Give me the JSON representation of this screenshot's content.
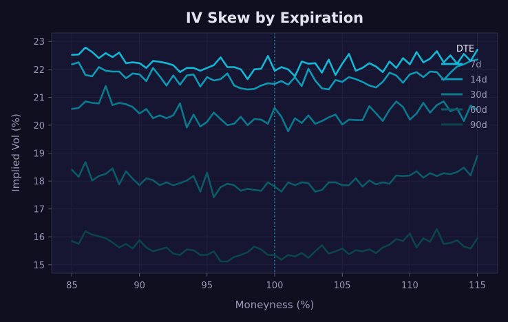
{
  "chart_data": {
    "type": "line",
    "title": "IV Skew by Expiration",
    "xlabel": "Moneyness (%)",
    "ylabel": "Implied Vol (%)",
    "xlim": [
      83.5,
      116.5
    ],
    "ylim": [
      14.7,
      23.3
    ],
    "xticks": [
      85,
      90,
      95,
      100,
      105,
      110,
      115
    ],
    "yticks": [
      15,
      16,
      17,
      18,
      19,
      20,
      21,
      22,
      23
    ],
    "grid": true,
    "reference_line_x": 100,
    "legend": {
      "title": "DTE",
      "placement": "top-right"
    },
    "x": [
      85,
      85.5,
      86,
      86.5,
      87,
      87.5,
      88,
      88.5,
      89,
      89.5,
      90,
      90.5,
      91,
      91.5,
      92,
      92.5,
      93,
      93.5,
      94,
      94.5,
      95,
      95.5,
      96,
      96.5,
      97,
      97.5,
      98,
      98.5,
      99,
      99.5,
      100,
      100.5,
      101,
      101.5,
      102,
      102.5,
      103,
      103.5,
      104,
      104.5,
      105,
      105.5,
      106,
      106.5,
      107,
      107.5,
      108,
      108.5,
      109,
      109.5,
      110,
      110.5,
      111,
      111.5,
      112,
      112.5,
      113,
      113.5,
      114,
      114.5,
      115
    ],
    "series": [
      {
        "name": "7d",
        "color": "#14b8d6",
        "values": [
          22.52,
          22.53,
          22.78,
          22.62,
          22.4,
          22.58,
          22.44,
          22.6,
          22.22,
          22.25,
          22.22,
          22.05,
          22.3,
          22.27,
          22.22,
          22.15,
          21.9,
          22.05,
          22.05,
          21.95,
          22.05,
          22.15,
          22.43,
          22.08,
          22.08,
          22.0,
          21.65,
          22.0,
          22.02,
          22.48,
          21.95,
          22.08,
          22.0,
          21.75,
          22.28,
          22.2,
          22.22,
          21.88,
          22.35,
          21.8,
          22.2,
          22.55,
          21.95,
          22.05,
          22.22,
          22.1,
          21.9,
          22.28,
          22.05,
          22.4,
          22.18,
          22.62,
          22.25,
          22.38,
          22.65,
          22.25,
          22.5,
          22.2,
          22.55,
          22.3,
          22.7
        ]
      },
      {
        "name": "14d",
        "color": "#0f9ab6",
        "values": [
          22.18,
          22.25,
          21.8,
          21.75,
          22.08,
          21.95,
          21.92,
          21.92,
          21.68,
          21.85,
          21.82,
          21.58,
          22.05,
          21.75,
          21.42,
          21.78,
          21.45,
          21.78,
          21.82,
          21.38,
          21.72,
          21.6,
          21.65,
          21.85,
          21.42,
          21.32,
          21.28,
          21.3,
          21.42,
          21.5,
          21.48,
          21.58,
          21.45,
          21.72,
          21.4,
          22.02,
          21.6,
          21.32,
          21.28,
          21.62,
          21.55,
          21.72,
          21.65,
          21.55,
          21.42,
          21.35,
          21.55,
          21.88,
          21.78,
          21.52,
          21.82,
          21.9,
          21.72,
          21.92,
          21.9,
          21.62,
          21.88,
          22.1,
          22.18,
          22.3,
          22.35
        ]
      },
      {
        "name": "30d",
        "color": "#0a7a8e",
        "values": [
          20.58,
          20.62,
          20.85,
          20.8,
          20.78,
          21.4,
          20.72,
          20.8,
          20.75,
          20.65,
          20.42,
          20.58,
          20.25,
          20.35,
          20.25,
          20.35,
          20.78,
          19.92,
          20.38,
          19.95,
          20.12,
          20.45,
          20.22,
          20.0,
          20.05,
          20.3,
          20.0,
          20.22,
          20.2,
          20.05,
          20.62,
          20.3,
          19.78,
          20.25,
          20.08,
          20.35,
          20.05,
          20.15,
          20.28,
          20.38,
          20.02,
          20.2,
          20.18,
          20.18,
          20.68,
          20.42,
          20.15,
          20.55,
          20.85,
          20.65,
          20.2,
          20.42,
          20.8,
          20.45,
          20.72,
          20.85,
          20.5,
          20.6,
          20.15,
          20.7,
          20.55
        ]
      },
      {
        "name": "60d",
        "color": "#0b5c68",
        "values": [
          18.4,
          18.15,
          18.68,
          18.02,
          18.18,
          18.25,
          18.45,
          17.88,
          18.35,
          18.08,
          17.85,
          18.1,
          18.03,
          17.85,
          17.95,
          17.85,
          17.92,
          18.02,
          18.18,
          17.62,
          18.3,
          17.42,
          17.78,
          17.9,
          17.85,
          17.65,
          17.72,
          17.68,
          17.65,
          17.95,
          17.8,
          17.62,
          17.95,
          17.85,
          17.95,
          17.92,
          17.62,
          17.68,
          17.95,
          17.95,
          17.85,
          17.85,
          18.1,
          17.8,
          18.02,
          17.88,
          17.95,
          17.9,
          18.2,
          18.18,
          18.2,
          18.35,
          18.12,
          18.28,
          18.18,
          18.28,
          18.25,
          18.32,
          18.48,
          18.2,
          18.9
        ]
      },
      {
        "name": "90d",
        "color": "#0b4548",
        "values": [
          15.85,
          15.75,
          16.2,
          16.08,
          16.02,
          15.95,
          15.8,
          15.62,
          15.75,
          15.58,
          15.88,
          15.62,
          15.48,
          15.55,
          15.62,
          15.4,
          15.35,
          15.55,
          15.52,
          15.35,
          15.35,
          15.48,
          15.12,
          15.12,
          15.28,
          15.35,
          15.45,
          15.65,
          15.55,
          15.35,
          15.35,
          15.18,
          15.35,
          15.3,
          15.42,
          15.25,
          15.48,
          15.7,
          15.4,
          15.48,
          15.58,
          15.38,
          15.52,
          15.48,
          15.55,
          15.42,
          15.62,
          15.72,
          15.92,
          15.85,
          16.12,
          15.62,
          15.95,
          15.82,
          16.28,
          15.75,
          15.78,
          15.88,
          15.65,
          15.58,
          15.95
        ]
      }
    ]
  }
}
